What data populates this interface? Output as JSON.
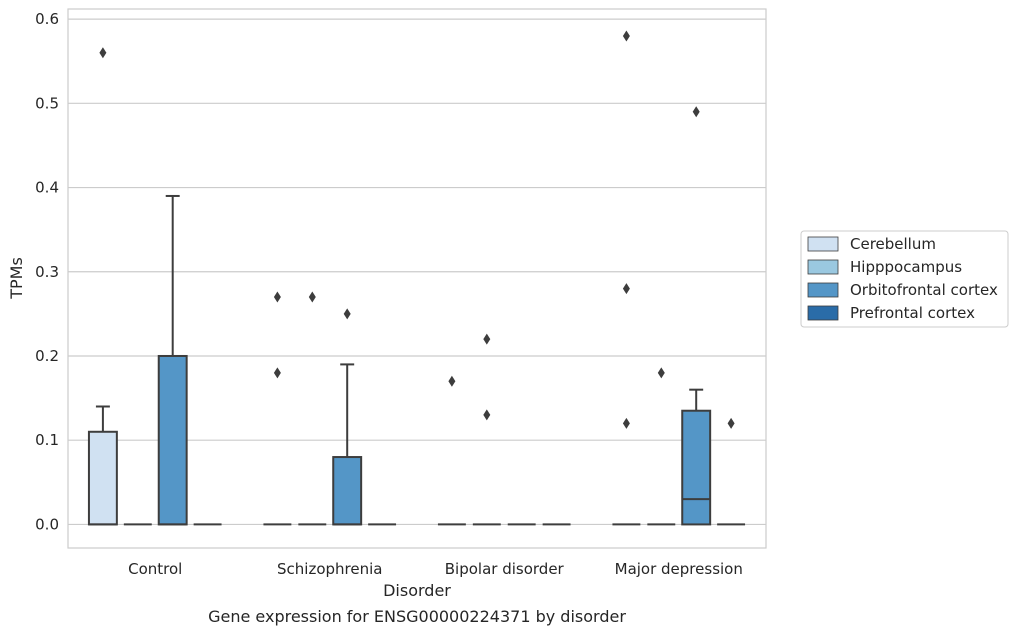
{
  "chart_data": {
    "type": "box",
    "caption": "Gene expression for ENSG00000224371 by disorder",
    "xlabel": "Disorder",
    "ylabel": "TPMs",
    "ylim": [
      -0.028,
      0.612
    ],
    "yticks": [
      0.0,
      0.1,
      0.2,
      0.3,
      0.4,
      0.5,
      0.6
    ],
    "ytick_labels": [
      "0.0",
      "0.1",
      "0.2",
      "0.3",
      "0.4",
      "0.5",
      "0.6"
    ],
    "grid": "horizontal",
    "legend_position": "right",
    "categories": [
      "Control",
      "Schizophrenia",
      "Bipolar disorder",
      "Major depression"
    ],
    "series": [
      {
        "name": "Cerebellum",
        "color": "#d0e1f2",
        "boxes": [
          {
            "category": "Control",
            "whislo": 0.0,
            "q1": 0.0,
            "med": 0.0,
            "q3": 0.11,
            "whishi": 0.14,
            "fliers": [
              0.56
            ]
          },
          {
            "category": "Schizophrenia",
            "whislo": 0.0,
            "q1": 0.0,
            "med": 0.0,
            "q3": 0.0,
            "whishi": 0.0,
            "fliers": [
              0.18,
              0.27
            ]
          },
          {
            "category": "Bipolar disorder",
            "whislo": 0.0,
            "q1": 0.0,
            "med": 0.0,
            "q3": 0.0,
            "whishi": 0.0,
            "fliers": [
              0.17
            ]
          },
          {
            "category": "Major depression",
            "whislo": 0.0,
            "q1": 0.0,
            "med": 0.0,
            "q3": 0.0,
            "whishi": 0.0,
            "fliers": [
              0.12,
              0.28,
              0.58
            ]
          }
        ]
      },
      {
        "name": "Hipppocampus",
        "color": "#9ac8e0",
        "boxes": [
          {
            "category": "Control",
            "whislo": 0.0,
            "q1": 0.0,
            "med": 0.0,
            "q3": 0.0,
            "whishi": 0.0,
            "fliers": []
          },
          {
            "category": "Schizophrenia",
            "whislo": 0.0,
            "q1": 0.0,
            "med": 0.0,
            "q3": 0.0,
            "whishi": 0.0,
            "fliers": [
              0.27
            ]
          },
          {
            "category": "Bipolar disorder",
            "whislo": 0.0,
            "q1": 0.0,
            "med": 0.0,
            "q3": 0.0,
            "whishi": 0.0,
            "fliers": [
              0.13,
              0.22
            ]
          },
          {
            "category": "Major depression",
            "whislo": 0.0,
            "q1": 0.0,
            "med": 0.0,
            "q3": 0.0,
            "whishi": 0.0,
            "fliers": [
              0.18
            ]
          }
        ]
      },
      {
        "name": "Orbitofrontal cortex",
        "color": "#5496c7",
        "boxes": [
          {
            "category": "Control",
            "whislo": 0.0,
            "q1": 0.0,
            "med": 0.0,
            "q3": 0.2,
            "whishi": 0.39,
            "fliers": []
          },
          {
            "category": "Schizophrenia",
            "whislo": 0.0,
            "q1": 0.0,
            "med": 0.0,
            "q3": 0.08,
            "whishi": 0.19,
            "fliers": [
              0.25
            ]
          },
          {
            "category": "Bipolar disorder",
            "whislo": 0.0,
            "q1": 0.0,
            "med": 0.0,
            "q3": 0.0,
            "whishi": 0.0,
            "fliers": []
          },
          {
            "category": "Major depression",
            "whislo": 0.0,
            "q1": 0.0,
            "med": 0.03,
            "q3": 0.135,
            "whishi": 0.16,
            "fliers": [
              0.49
            ]
          }
        ]
      },
      {
        "name": "Prefrontal cortex",
        "color": "#2a6ca8",
        "boxes": [
          {
            "category": "Control",
            "whislo": 0.0,
            "q1": 0.0,
            "med": 0.0,
            "q3": 0.0,
            "whishi": 0.0,
            "fliers": []
          },
          {
            "category": "Schizophrenia",
            "whislo": 0.0,
            "q1": 0.0,
            "med": 0.0,
            "q3": 0.0,
            "whishi": 0.0,
            "fliers": []
          },
          {
            "category": "Bipolar disorder",
            "whislo": 0.0,
            "q1": 0.0,
            "med": 0.0,
            "q3": 0.0,
            "whishi": 0.0,
            "fliers": []
          },
          {
            "category": "Major depression",
            "whislo": 0.0,
            "q1": 0.0,
            "med": 0.0,
            "q3": 0.0,
            "whishi": 0.0,
            "fliers": [
              0.12
            ]
          }
        ]
      }
    ]
  }
}
